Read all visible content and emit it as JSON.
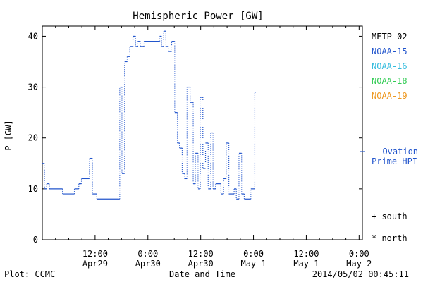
{
  "chart_data": {
    "type": "line",
    "title": "Hemispheric Power [GW]",
    "xlabel": "Date and Time",
    "ylabel": "P [GW]",
    "ylim": [
      0,
      42
    ],
    "xlim_hours": [
      0,
      72.75
    ],
    "grid": false,
    "yticks": [
      0,
      10,
      20,
      30,
      40
    ],
    "xticks": [
      {
        "hours": 12,
        "time": "12:00",
        "date": "Apr29"
      },
      {
        "hours": 24,
        "time": "0:00",
        "date": "Apr30"
      },
      {
        "hours": 36,
        "time": "12:00",
        "date": "Apr30"
      },
      {
        "hours": 48,
        "time": "0:00",
        "date": "May 1"
      },
      {
        "hours": 60,
        "time": "12:00",
        "date": "May 1"
      },
      {
        "hours": 72,
        "time": "0:00",
        "date": "May 2"
      }
    ],
    "series": [
      {
        "name": "NOAA-15",
        "color": "#2255cc",
        "step_points": [
          [
            0,
            15
          ],
          [
            0.5,
            10
          ],
          [
            1,
            11
          ],
          [
            1.6,
            10
          ],
          [
            4.6,
            9
          ],
          [
            7.3,
            10
          ],
          [
            8.3,
            11
          ],
          [
            8.9,
            12
          ],
          [
            10.7,
            16
          ],
          [
            11.4,
            9
          ],
          [
            12.4,
            8
          ],
          [
            17.2,
            8
          ],
          [
            17.6,
            30
          ],
          [
            18.1,
            13
          ],
          [
            18.7,
            35
          ],
          [
            19.3,
            36
          ],
          [
            19.9,
            38
          ],
          [
            20.6,
            40
          ],
          [
            21.2,
            38
          ],
          [
            21.7,
            39
          ],
          [
            22.3,
            38
          ],
          [
            23.1,
            39
          ],
          [
            26.7,
            40
          ],
          [
            27.1,
            38
          ],
          [
            27.6,
            41
          ],
          [
            28.1,
            38
          ],
          [
            28.7,
            37
          ],
          [
            29.4,
            39
          ],
          [
            30.1,
            25
          ],
          [
            30.7,
            19
          ],
          [
            31.2,
            18
          ],
          [
            31.8,
            13
          ],
          [
            32.3,
            12
          ],
          [
            32.9,
            30
          ],
          [
            33.6,
            27
          ],
          [
            34.3,
            11
          ],
          [
            34.8,
            17
          ],
          [
            35.4,
            10
          ],
          [
            35.9,
            28
          ],
          [
            36.5,
            14
          ],
          [
            37.1,
            19
          ],
          [
            37.7,
            10
          ],
          [
            38.3,
            21
          ],
          [
            38.8,
            10
          ],
          [
            39.4,
            11
          ],
          [
            40.6,
            9
          ],
          [
            41.2,
            12
          ],
          [
            41.8,
            19
          ],
          [
            42.4,
            9
          ],
          [
            43.6,
            10
          ],
          [
            44.1,
            8
          ],
          [
            44.7,
            17
          ],
          [
            45.3,
            9
          ],
          [
            45.9,
            8
          ],
          [
            47.4,
            10
          ],
          [
            48.3,
            29
          ]
        ]
      }
    ],
    "ovation_value": 17.3,
    "ovation_label_line1": "— Ovation",
    "ovation_label_line2": "Prime HPI"
  },
  "legend": {
    "items": [
      {
        "label": "METP-02",
        "color": "#000000"
      },
      {
        "label": "NOAA-15",
        "color": "#2255cc"
      },
      {
        "label": "NOAA-16",
        "color": "#33bbdd"
      },
      {
        "label": "NOAA-18",
        "color": "#33cc55"
      },
      {
        "label": "NOAA-19",
        "color": "#ee9922"
      }
    ],
    "ovation_color": "#2255cc"
  },
  "markers": {
    "south": "+ south",
    "north": "* north"
  },
  "footer": {
    "plot_credit": "Plot: CCMC",
    "timestamp": "2014/05/02 00:45:11"
  }
}
